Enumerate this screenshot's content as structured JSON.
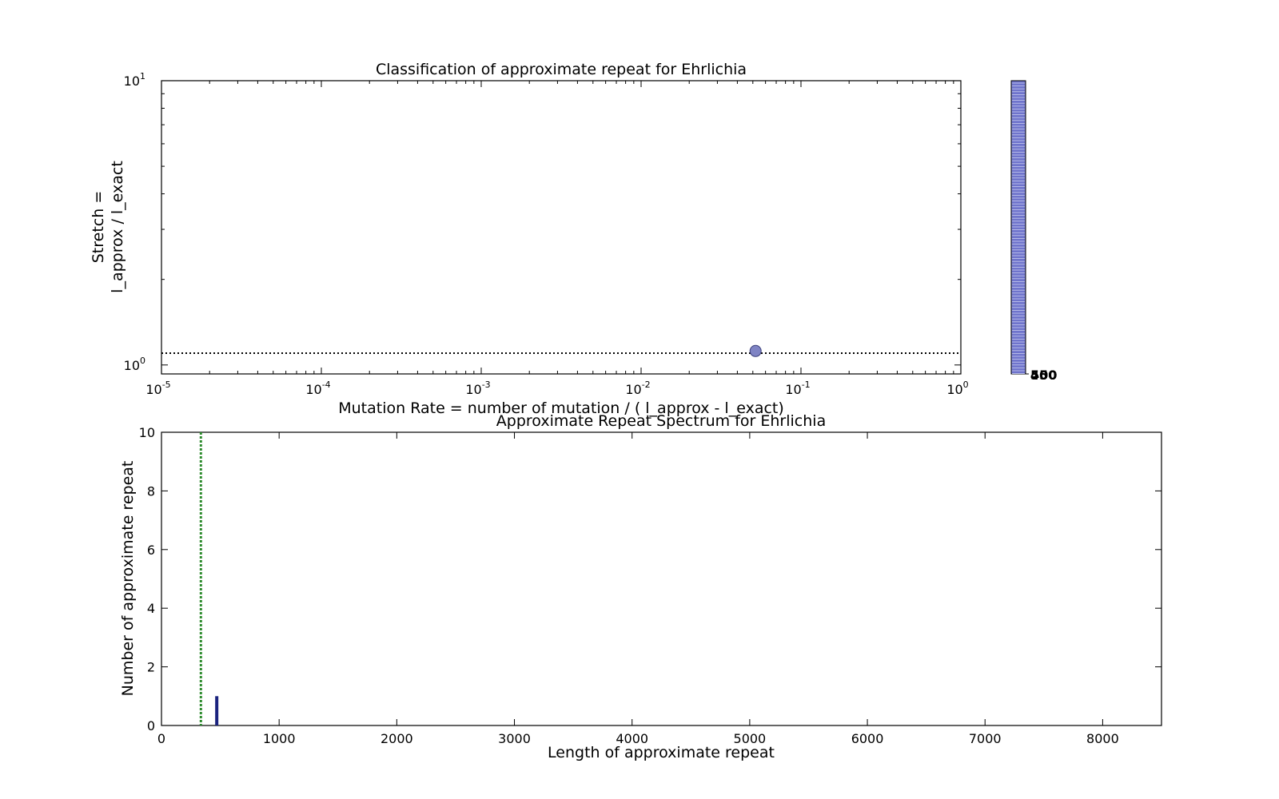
{
  "chart_data": [
    {
      "type": "scatter",
      "title": "Classification of approximate repeat for Ehrlichia",
      "xlabel": "Mutation Rate = number of mutation / ( l_approx - l_exact)",
      "ylabel_lines": [
        "Stretch =",
        "l_approx / l_exact"
      ],
      "xscale": "log",
      "yscale": "log",
      "xlim": [
        1e-05,
        1
      ],
      "ylim": [
        0.93,
        10
      ],
      "x_ticks": [
        {
          "value": 1e-05,
          "base": "10",
          "exp": "-5"
        },
        {
          "value": 0.0001,
          "base": "10",
          "exp": "-4"
        },
        {
          "value": 0.001,
          "base": "10",
          "exp": "-3"
        },
        {
          "value": 0.01,
          "base": "10",
          "exp": "-2"
        },
        {
          "value": 0.1,
          "base": "10",
          "exp": "-1"
        },
        {
          "value": 1,
          "base": "10",
          "exp": "0"
        }
      ],
      "y_ticks": [
        {
          "value": 1,
          "base": "10",
          "exp": "0"
        },
        {
          "value": 10,
          "base": "10",
          "exp": "1"
        }
      ],
      "points": [
        {
          "x": 0.052,
          "y": 1.12
        }
      ],
      "point_color": "#7f84c4",
      "reference_line": {
        "y": 1.1,
        "style": "dotted",
        "color": "#000000"
      },
      "grid": false
    },
    {
      "type": "colorbar",
      "tick_labels": [
        "400",
        "450",
        "500"
      ],
      "color": "#6f74cc"
    },
    {
      "type": "bar",
      "title": "Approximate Repeat Spectrum for Ehrlichia",
      "xlabel": "Length of approximate repeat",
      "ylabel": "Number of approximate repeat",
      "xlim": [
        0,
        8500
      ],
      "ylim": [
        0,
        10
      ],
      "x_ticks": [
        0,
        1000,
        2000,
        3000,
        4000,
        5000,
        6000,
        7000,
        8000
      ],
      "y_ticks": [
        0,
        2,
        4,
        6,
        8,
        10
      ],
      "bars": [
        {
          "x": 470,
          "value": 1
        }
      ],
      "bar_color": "#1a237e",
      "reference_line": {
        "x": 335,
        "style": "dotted",
        "color": "#2e8b2e"
      },
      "grid": false
    }
  ]
}
